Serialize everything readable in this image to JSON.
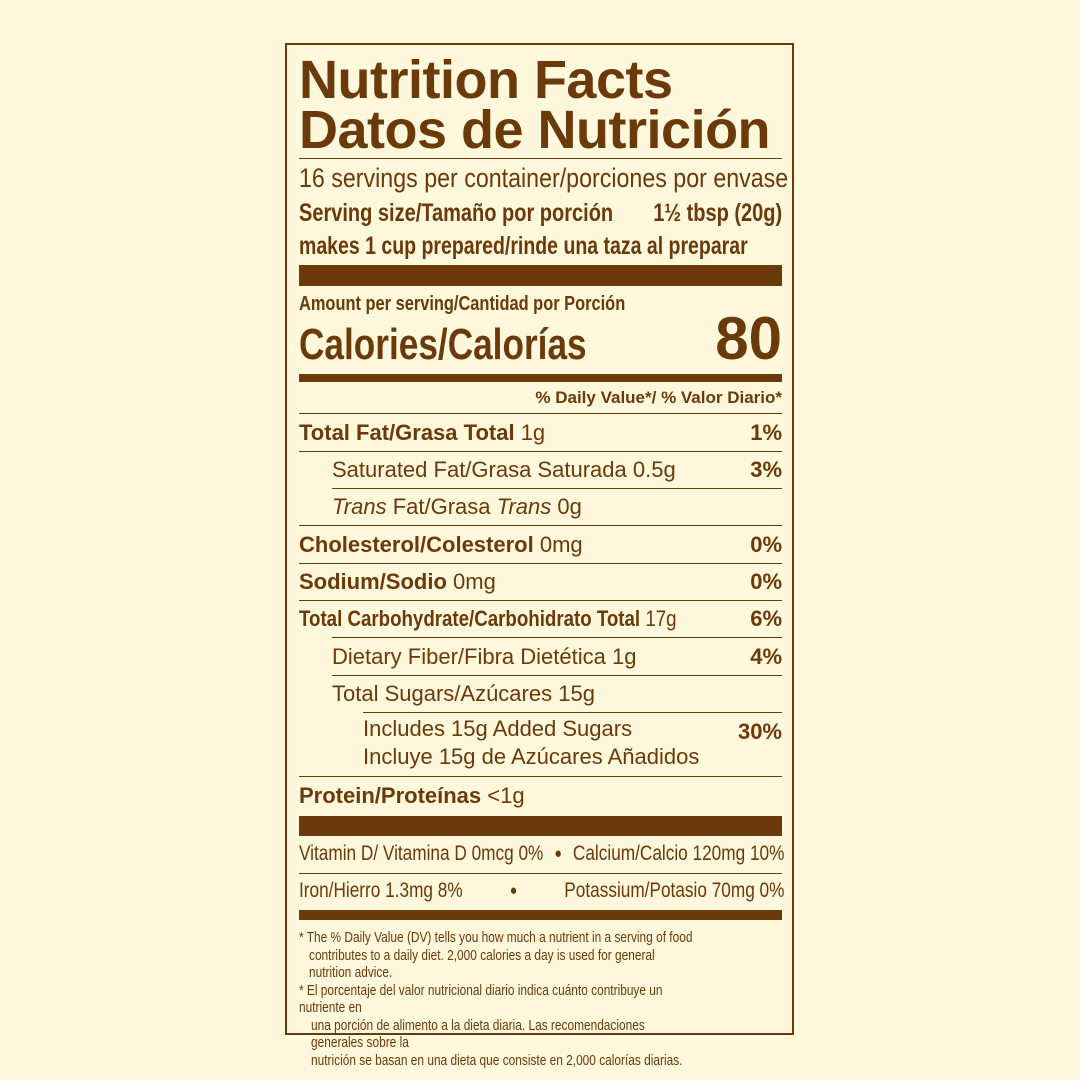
{
  "title_en": "Nutrition Facts",
  "title_es": "Datos de Nutrición",
  "servings": "16 servings per container/porciones por envase",
  "serving_size_label": "Serving size/Tamaño por porción",
  "serving_size_value": "1½ tbsp (20g)",
  "prepared": "makes 1 cup prepared/rinde una taza al preparar",
  "amount_per_serving": "Amount per serving/Cantidad por Porción",
  "calories_label": "Calories/Calorías",
  "calories_value": "80",
  "dv_header": "% Daily Value*/ % Valor Diario*",
  "nutrients": [
    {
      "label": "Total Fat/Grasa Total",
      "amount": "1g",
      "dv": "1%"
    },
    {
      "label": "Saturated Fat/Grasa Saturada",
      "amount": "0.5g",
      "dv": "3%"
    },
    {
      "label_italic1": "Trans",
      "label_mid": " Fat/Grasa ",
      "label_italic2": "Trans",
      "amount": "0g"
    },
    {
      "label": "Cholesterol/Colesterol",
      "amount": "0mg",
      "dv": "0%"
    },
    {
      "label": "Sodium/Sodio",
      "amount": "0mg",
      "dv": "0%"
    },
    {
      "label": "Total Carbohydrate/Carbohidrato Total",
      "amount": "17g",
      "dv": "6%"
    },
    {
      "label": "Dietary Fiber/Fibra Dietética",
      "amount": "1g",
      "dv": "4%"
    },
    {
      "label": "Total Sugars/Azúcares",
      "amount": "15g"
    },
    {
      "label": "Includes 15g Added Sugars",
      "label2": "Incluye 15g de Azúcares Añadidos",
      "dv": "30%"
    },
    {
      "label": "Protein/Proteínas",
      "amount": "<1g"
    }
  ],
  "vitamins_row1": {
    "a": "Vitamin D/ Vitamina D 0mcg 0%",
    "sep": "●",
    "b": "Calcium/Calcio 120mg 10%"
  },
  "vitamins_row2": {
    "a": "Iron/Hierro 1.3mg 8%",
    "sep": "●",
    "b": "Potassium/Potasio 70mg 0%"
  },
  "footnotes": [
    "* The % Daily Value (DV) tells you how much a nutrient in a serving of food",
    "contributes to a daily diet. 2,000 calories a day is used for general nutrition advice.",
    "* El porcentaje del valor nutricional diario indica cuánto contribuye un nutriente en",
    "una porción de alimento a la dieta diaria. Las recomendaciones generales sobre la",
    "nutrición se basan en una dieta que consiste en 2,000 calorías diarias."
  ],
  "colors": {
    "background": "#fdf7dc",
    "ink": "#6b3a0a"
  }
}
